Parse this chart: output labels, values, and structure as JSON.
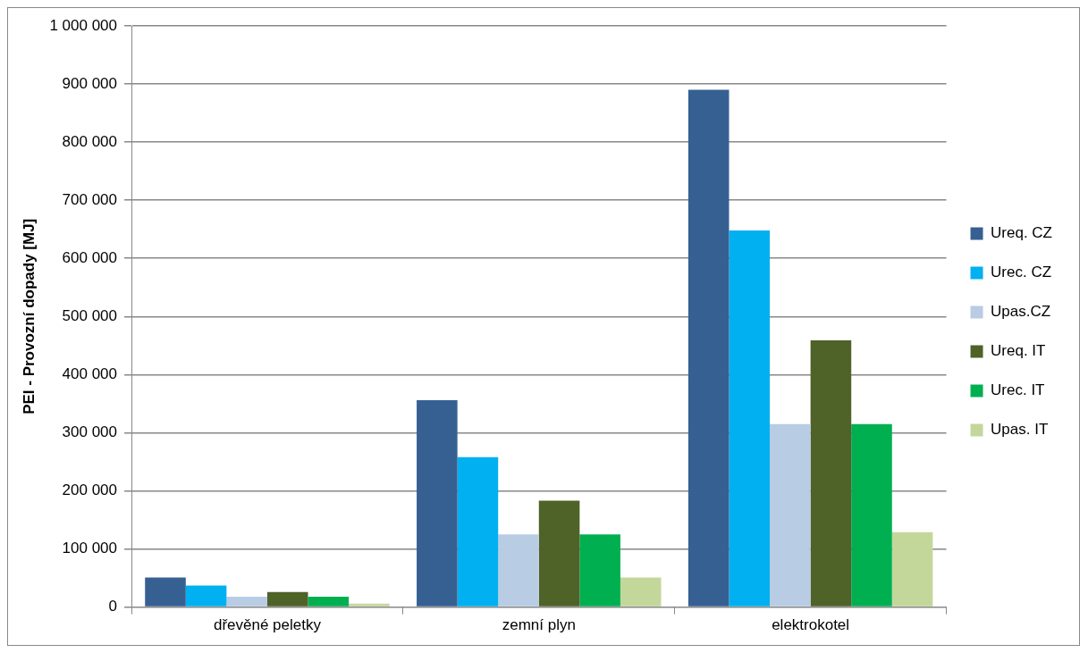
{
  "chart_data": {
    "type": "bar",
    "ylabel": "PEI - Provozní dopady [MJ]",
    "categories": [
      "dřevěné peletky",
      "zemní plyn",
      "elektrokotel"
    ],
    "series": [
      {
        "name": "Ureq. CZ",
        "color": "#366092",
        "values": [
          51000,
          356000,
          890000
        ]
      },
      {
        "name": "Urec. CZ",
        "color": "#00b0f0",
        "values": [
          37000,
          258000,
          648000
        ]
      },
      {
        "name": "Upas.CZ",
        "color": "#b8cce4",
        "values": [
          18000,
          125000,
          315000
        ]
      },
      {
        "name": "Ureq. IT",
        "color": "#4f6228",
        "values": [
          26000,
          183000,
          459000
        ]
      },
      {
        "name": "Urec. IT",
        "color": "#00b050",
        "values": [
          18000,
          125000,
          315000
        ]
      },
      {
        "name": "Upas. IT",
        "color": "#c4d79b",
        "values": [
          6000,
          51000,
          129000
        ]
      }
    ],
    "ylim": [
      0,
      1000000
    ],
    "yticks": [
      0,
      {
        "value": 100000,
        "label": "100 000"
      },
      {
        "value": 200000,
        "label": "200 000"
      },
      {
        "value": 300000,
        "label": "300 000"
      },
      {
        "value": 400000,
        "label": "400 000"
      },
      {
        "value": 500000,
        "label": "500 000"
      },
      {
        "value": 600000,
        "label": "600 000"
      },
      {
        "value": 700000,
        "label": "700 000"
      },
      {
        "value": 800000,
        "label": "800 000"
      },
      {
        "value": 900000,
        "label": "900 000"
      },
      {
        "value": 1000000,
        "label": "1 000 000"
      }
    ],
    "grid": "y",
    "legend": "right"
  }
}
